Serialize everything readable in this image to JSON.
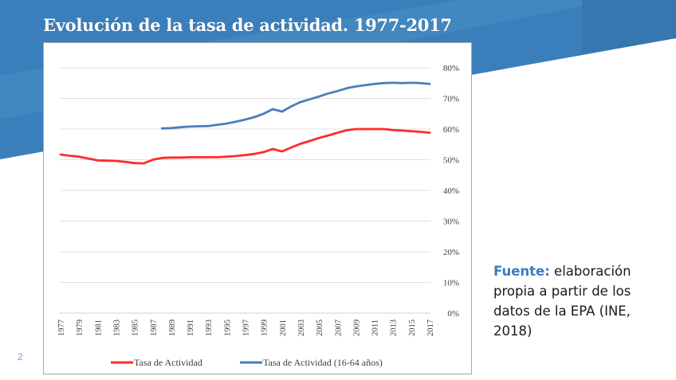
{
  "slide": {
    "title": "Evolución de la tasa de actividad. 1977-2017",
    "page_number": "2",
    "source_label": "Fuente:",
    "source_text": " elaboración propia a partir de los datos de la EPA (INE, 2018)",
    "colors": {
      "banner": "#3a7fbb",
      "banner_light": "#4a8cc4",
      "banner_dark": "#3574ab",
      "accent_text": "#3a7dc1"
    }
  },
  "chart_data": {
    "type": "line",
    "title": "Evolución de la tasa de actividad. 1977-2017",
    "xlabel": "",
    "ylabel": "",
    "x": [
      1977,
      1978,
      1979,
      1980,
      1981,
      1982,
      1983,
      1984,
      1985,
      1986,
      1987,
      1988,
      1989,
      1990,
      1991,
      1992,
      1993,
      1994,
      1995,
      1996,
      1997,
      1998,
      1999,
      2000,
      2001,
      2002,
      2003,
      2004,
      2005,
      2006,
      2007,
      2008,
      2009,
      2010,
      2011,
      2012,
      2013,
      2014,
      2015,
      2016,
      2017
    ],
    "x_tick_labels": [
      "1977",
      "1979",
      "1981",
      "1983",
      "1985",
      "1987",
      "1989",
      "1991",
      "1993",
      "1995",
      "1997",
      "1999",
      "2001",
      "2003",
      "2005",
      "2007",
      "2009",
      "2011",
      "2013",
      "2015",
      "2017"
    ],
    "y_ticks": [
      0,
      10,
      20,
      30,
      40,
      50,
      60,
      70,
      80
    ],
    "y_tick_labels": [
      "0%",
      "10%",
      "20%",
      "30%",
      "40%",
      "50%",
      "60%",
      "70%",
      "80%"
    ],
    "ylim": [
      0,
      80
    ],
    "y_axis_side": "right",
    "grid": true,
    "legend_position": "bottom",
    "series": [
      {
        "name": "Tasa de Actividad",
        "color": "#ff2b2b",
        "values": [
          51.7,
          51.3,
          51.0,
          50.4,
          49.8,
          49.7,
          49.6,
          49.3,
          48.9,
          48.8,
          50.0,
          50.6,
          50.7,
          50.7,
          50.8,
          50.8,
          50.8,
          50.8,
          51.0,
          51.2,
          51.5,
          51.9,
          52.5,
          53.5,
          52.7,
          54.0,
          55.2,
          56.1,
          57.1,
          57.9,
          58.8,
          59.6,
          60.0,
          60.0,
          60.0,
          60.0,
          59.7,
          59.5,
          59.3,
          59.1,
          58.8
        ]
      },
      {
        "name": "Tasa de Actividad (16-64 años)",
        "color": "#4a7ebb",
        "values": [
          null,
          null,
          null,
          null,
          null,
          null,
          null,
          null,
          null,
          null,
          null,
          60.2,
          60.3,
          60.6,
          60.8,
          60.9,
          61.0,
          61.4,
          61.8,
          62.4,
          63.1,
          63.9,
          65.0,
          66.5,
          65.7,
          67.4,
          68.8,
          69.7,
          70.6,
          71.6,
          72.4,
          73.3,
          73.9,
          74.3,
          74.7,
          75.0,
          75.1,
          75.0,
          75.1,
          75.0,
          74.7
        ]
      }
    ]
  }
}
